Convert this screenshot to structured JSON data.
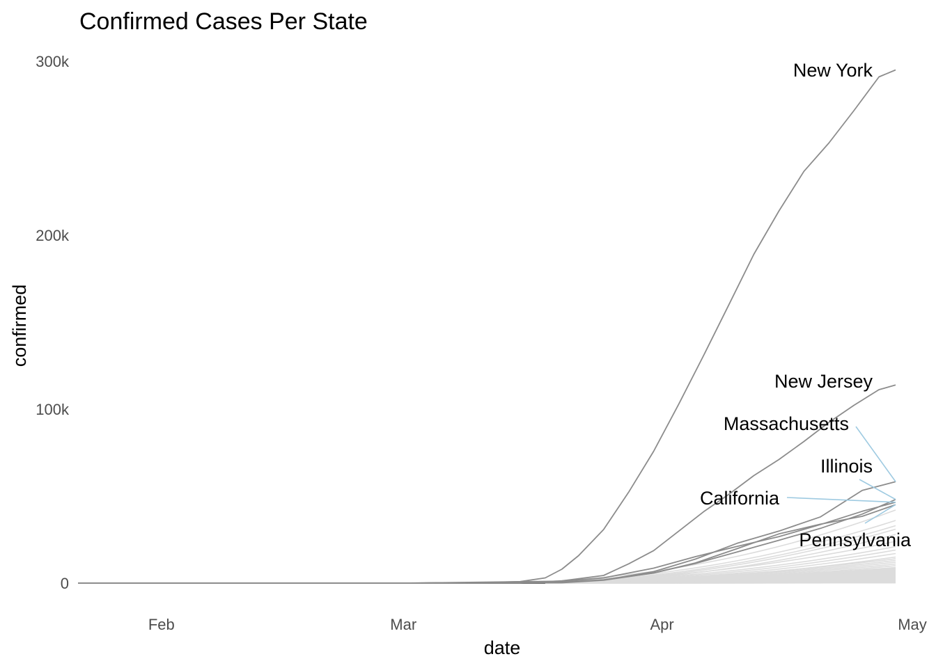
{
  "chart_data": {
    "type": "line",
    "title": "Confirmed Cases Per State",
    "xlabel": "date",
    "ylabel": "confirmed",
    "x_ticks": [
      {
        "date": "2020-02-01",
        "label": "Feb"
      },
      {
        "date": "2020-03-01",
        "label": "Mar"
      },
      {
        "date": "2020-04-01",
        "label": "Apr"
      },
      {
        "date": "2020-05-01",
        "label": "May"
      }
    ],
    "y_ticks": [
      {
        "value": 0,
        "label": "0"
      },
      {
        "value": 100000,
        "label": "100k"
      },
      {
        "value": 200000,
        "label": "200k"
      },
      {
        "value": 300000,
        "label": "300k"
      }
    ],
    "xlim": [
      "2020-01-22",
      "2020-05-01"
    ],
    "ylim": [
      0,
      300000
    ],
    "grid": false,
    "legend": "none",
    "colors": {
      "highlight": "#8c8c8c",
      "background": "#dcdcdc",
      "label_line": "#9ecae1",
      "axis_text": "#4d4d4d"
    },
    "highlighted_series": [
      {
        "name": "New York",
        "points": [
          [
            "2020-03-01",
            0
          ],
          [
            "2020-03-10",
            200
          ],
          [
            "2020-03-15",
            900
          ],
          [
            "2020-03-18",
            3000
          ],
          [
            "2020-03-20",
            8000
          ],
          [
            "2020-03-22",
            15800
          ],
          [
            "2020-03-25",
            30800
          ],
          [
            "2020-03-28",
            52300
          ],
          [
            "2020-03-31",
            75800
          ],
          [
            "2020-04-03",
            102900
          ],
          [
            "2020-04-06",
            131000
          ],
          [
            "2020-04-09",
            159900
          ],
          [
            "2020-04-12",
            189000
          ],
          [
            "2020-04-15",
            213800
          ],
          [
            "2020-04-18",
            236700
          ],
          [
            "2020-04-21",
            253000
          ],
          [
            "2020-04-24",
            271600
          ],
          [
            "2020-04-27",
            291000
          ],
          [
            "2020-04-29",
            295000
          ]
        ]
      },
      {
        "name": "New Jersey",
        "points": [
          [
            "2020-03-01",
            0
          ],
          [
            "2020-03-15",
            100
          ],
          [
            "2020-03-20",
            1300
          ],
          [
            "2020-03-25",
            4400
          ],
          [
            "2020-03-28",
            11100
          ],
          [
            "2020-03-31",
            18700
          ],
          [
            "2020-04-03",
            29900
          ],
          [
            "2020-04-06",
            41100
          ],
          [
            "2020-04-09",
            51000
          ],
          [
            "2020-04-12",
            61800
          ],
          [
            "2020-04-15",
            71000
          ],
          [
            "2020-04-18",
            81400
          ],
          [
            "2020-04-21",
            92400
          ],
          [
            "2020-04-24",
            102200
          ],
          [
            "2020-04-27",
            111200
          ],
          [
            "2020-04-29",
            113900
          ]
        ]
      },
      {
        "name": "Massachusetts",
        "points": [
          [
            "2020-03-01",
            0
          ],
          [
            "2020-03-20",
            400
          ],
          [
            "2020-03-25",
            1800
          ],
          [
            "2020-03-31",
            6600
          ],
          [
            "2020-04-05",
            13800
          ],
          [
            "2020-04-10",
            22900
          ],
          [
            "2020-04-15",
            29900
          ],
          [
            "2020-04-20",
            38100
          ],
          [
            "2020-04-25",
            53300
          ],
          [
            "2020-04-29",
            58300
          ]
        ]
      },
      {
        "name": "Illinois",
        "points": [
          [
            "2020-03-01",
            0
          ],
          [
            "2020-03-20",
            600
          ],
          [
            "2020-03-25",
            1900
          ],
          [
            "2020-03-31",
            5900
          ],
          [
            "2020-04-05",
            11300
          ],
          [
            "2020-04-10",
            17900
          ],
          [
            "2020-04-15",
            24600
          ],
          [
            "2020-04-20",
            31500
          ],
          [
            "2020-04-25",
            39700
          ],
          [
            "2020-04-29",
            48100
          ]
        ]
      },
      {
        "name": "California",
        "points": [
          [
            "2020-03-01",
            0
          ],
          [
            "2020-03-20",
            1100
          ],
          [
            "2020-03-25",
            3000
          ],
          [
            "2020-03-31",
            8600
          ],
          [
            "2020-04-05",
            15200
          ],
          [
            "2020-04-10",
            21100
          ],
          [
            "2020-04-15",
            26700
          ],
          [
            "2020-04-20",
            33700
          ],
          [
            "2020-04-25",
            41300
          ],
          [
            "2020-04-29",
            46500
          ]
        ]
      },
      {
        "name": "Pennsylvania",
        "points": [
          [
            "2020-03-01",
            0
          ],
          [
            "2020-03-20",
            200
          ],
          [
            "2020-03-25",
            1700
          ],
          [
            "2020-03-31",
            5800
          ],
          [
            "2020-04-05",
            11600
          ],
          [
            "2020-04-10",
            19800
          ],
          [
            "2020-04-15",
            28300
          ],
          [
            "2020-04-20",
            33900
          ],
          [
            "2020-04-25",
            38400
          ],
          [
            "2020-04-29",
            45100
          ]
        ]
      }
    ],
    "background_series_final_values": [
      42000,
      36000,
      33000,
      31000,
      28000,
      24000,
      21000,
      19000,
      17000,
      15000,
      14000,
      13000,
      12000,
      11000,
      10000,
      9000,
      8500,
      8000,
      7500,
      7000,
      6500,
      6000,
      5500,
      5000,
      4500,
      4000,
      3600,
      3200,
      2900,
      2600,
      2300,
      2000,
      1800,
      1600,
      1400,
      1200,
      1000,
      800,
      700,
      600,
      500,
      400,
      300,
      200,
      150
    ]
  }
}
